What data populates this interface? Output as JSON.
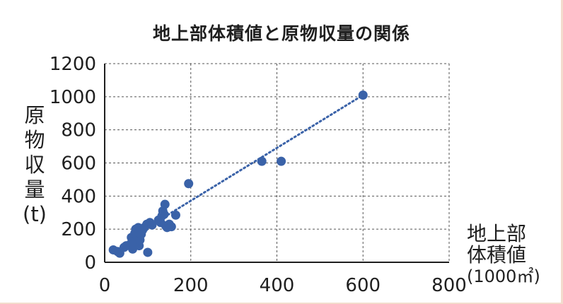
{
  "chart_data": {
    "type": "scatter",
    "title": "地上部体積値と原物収量の関係",
    "ylabel": "原物収量(t)",
    "xlabel_lines": [
      "地上部",
      "体積値",
      "(1000㎡)"
    ],
    "xlim": [
      0,
      800
    ],
    "ylim": [
      0,
      1200
    ],
    "xticks": [
      0,
      200,
      400,
      600,
      800
    ],
    "yticks": [
      0,
      200,
      400,
      600,
      800,
      1000,
      1200
    ],
    "grid": true,
    "trendline": {
      "style": "dotted",
      "from": [
        130,
        260
      ],
      "to": [
        600,
        1010
      ]
    },
    "points": [
      {
        "x": 20,
        "y": 75
      },
      {
        "x": 30,
        "y": 65
      },
      {
        "x": 35,
        "y": 55
      },
      {
        "x": 45,
        "y": 90
      },
      {
        "x": 50,
        "y": 100
      },
      {
        "x": 60,
        "y": 110
      },
      {
        "x": 62,
        "y": 150
      },
      {
        "x": 65,
        "y": 80
      },
      {
        "x": 68,
        "y": 130
      },
      {
        "x": 70,
        "y": 175
      },
      {
        "x": 72,
        "y": 200
      },
      {
        "x": 75,
        "y": 160
      },
      {
        "x": 78,
        "y": 210
      },
      {
        "x": 80,
        "y": 100
      },
      {
        "x": 82,
        "y": 135
      },
      {
        "x": 85,
        "y": 170
      },
      {
        "x": 88,
        "y": 195
      },
      {
        "x": 92,
        "y": 210
      },
      {
        "x": 98,
        "y": 230
      },
      {
        "x": 100,
        "y": 60
      },
      {
        "x": 105,
        "y": 240
      },
      {
        "x": 110,
        "y": 225
      },
      {
        "x": 125,
        "y": 255
      },
      {
        "x": 130,
        "y": 240
      },
      {
        "x": 133,
        "y": 280
      },
      {
        "x": 135,
        "y": 310
      },
      {
        "x": 138,
        "y": 290
      },
      {
        "x": 140,
        "y": 350
      },
      {
        "x": 142,
        "y": 220
      },
      {
        "x": 145,
        "y": 210
      },
      {
        "x": 150,
        "y": 230
      },
      {
        "x": 155,
        "y": 215
      },
      {
        "x": 165,
        "y": 285
      },
      {
        "x": 195,
        "y": 475
      },
      {
        "x": 365,
        "y": 610
      },
      {
        "x": 410,
        "y": 610
      },
      {
        "x": 600,
        "y": 1010
      }
    ],
    "colors": {
      "point": "#3a62a8",
      "trendline": "#3a62a8",
      "grid": "#555555",
      "axis": "#1f1f1f"
    }
  }
}
